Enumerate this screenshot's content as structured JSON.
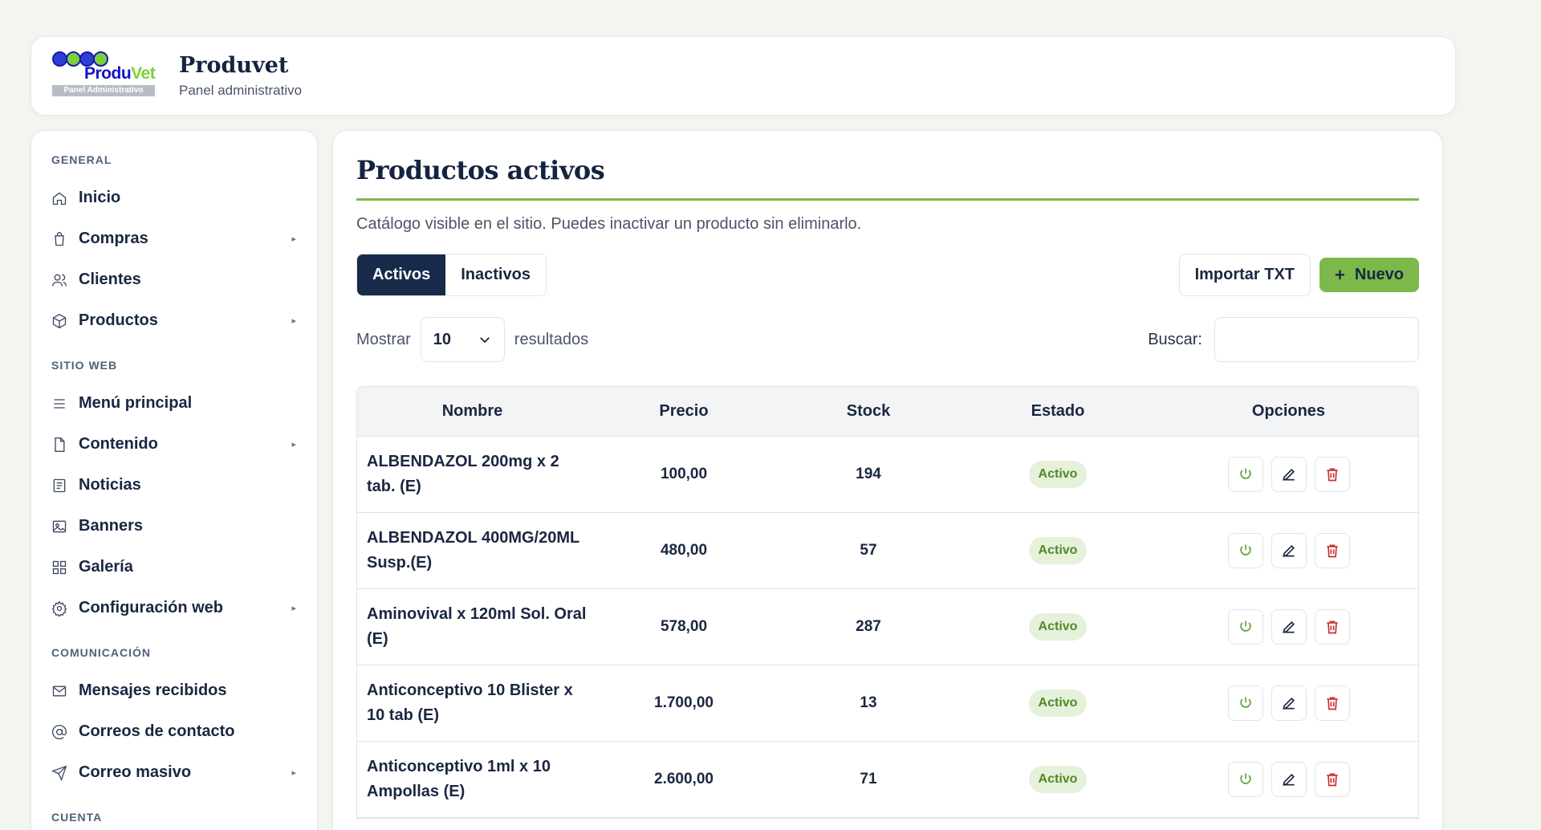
{
  "header": {
    "logo_text_main": "Produ",
    "logo_text_accent": "Vet",
    "logo_strip": "Panel Administrativo",
    "title": "Produvet",
    "subtitle": "Panel administrativo"
  },
  "sidebar": {
    "sections": [
      {
        "label": "GENERAL"
      },
      {
        "label": "SITIO WEB"
      },
      {
        "label": "COMUNICACIÓN"
      },
      {
        "label": "CUENTA"
      }
    ],
    "items": [
      {
        "label": "Inicio",
        "icon": "home-icon"
      },
      {
        "label": "Compras",
        "icon": "bag-icon"
      },
      {
        "label": "Clientes",
        "icon": "users-icon"
      },
      {
        "label": "Productos",
        "icon": "box-icon"
      },
      {
        "label": "Menú principal",
        "icon": "menu-icon"
      },
      {
        "label": "Contenido",
        "icon": "file-icon"
      },
      {
        "label": "Noticias",
        "icon": "news-icon"
      },
      {
        "label": "Banners",
        "icon": "image-icon"
      },
      {
        "label": "Galería",
        "icon": "grid-icon"
      },
      {
        "label": "Configuración web",
        "icon": "gear-icon"
      },
      {
        "label": "Mensajes recibidos",
        "icon": "mail-icon"
      },
      {
        "label": "Correos de contacto",
        "icon": "at-icon"
      },
      {
        "label": "Correo masivo",
        "icon": "send-icon"
      }
    ],
    "chevron": "▸"
  },
  "main": {
    "title": "Productos activos",
    "description": "Catálogo visible en el sitio. Puedes inactivar un producto sin eliminarlo.",
    "tabs": [
      {
        "label": "Activos"
      },
      {
        "label": "Inactivos"
      }
    ],
    "import_label": "Importar TXT",
    "new_plus": "+",
    "new_label": "Nuevo",
    "show_label": "Mostrar",
    "page_size": "10",
    "results_label": "resultados",
    "search_label": "Buscar:",
    "search_value": "",
    "columns": [
      "Nombre",
      "Precio",
      "Stock",
      "Estado",
      "Opciones"
    ],
    "rows": [
      {
        "name": "ALBENDAZOL 200mg x 2 tab. (E)",
        "price": "100,00",
        "stock": "194",
        "status": "Activo"
      },
      {
        "name": "ALBENDAZOL 400MG/20ML Susp.(E)",
        "price": "480,00",
        "stock": "57",
        "status": "Activo"
      },
      {
        "name": "Aminovival x 120ml Sol. Oral (E)",
        "price": "578,00",
        "stock": "287",
        "status": "Activo"
      },
      {
        "name": "Anticonceptivo 10 Blister x 10 tab (E)",
        "price": "1.700,00",
        "stock": "13",
        "status": "Activo"
      },
      {
        "name": "Anticonceptivo 1ml x 10 Ampollas (E)",
        "price": "2.600,00",
        "stock": "71",
        "status": "Activo"
      }
    ]
  },
  "colors": {
    "navy": "#172a4a",
    "green": "#7cb94a",
    "badge_bg": "#e6f1dc",
    "danger": "#c93030",
    "background": "#f3f5f0"
  }
}
